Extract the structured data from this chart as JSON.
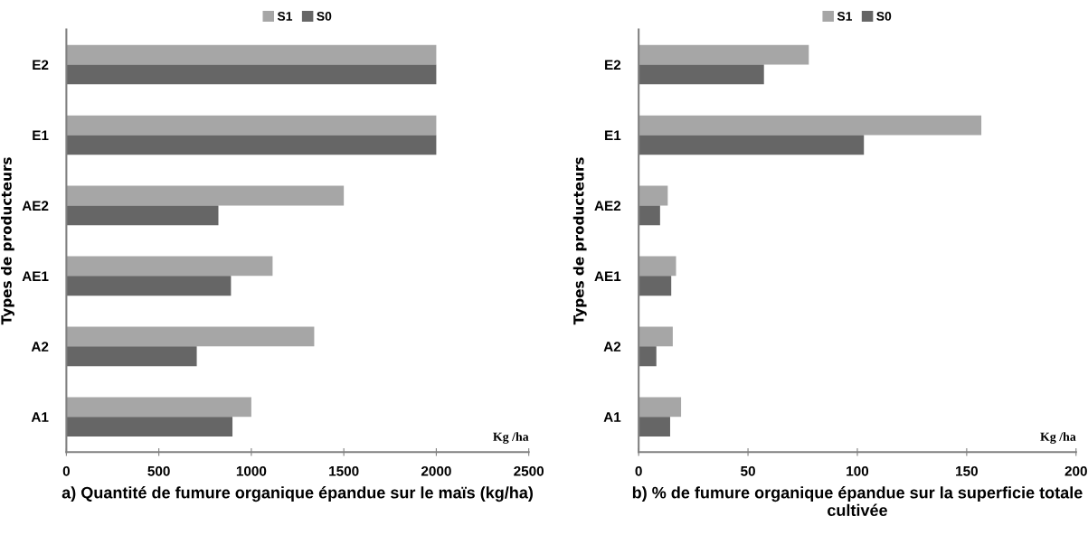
{
  "chart_data": [
    {
      "type": "bar",
      "orientation": "horizontal",
      "xlabel": "a) Quantité de fumure organique épandue sur le maïs (kg/ha)",
      "ylabel": "Types de producteurs",
      "annotations": [
        "Kg /ha"
      ],
      "categories": [
        "E2",
        "E1",
        "AE2",
        "AE1",
        "A2",
        "A1"
      ],
      "series": [
        {
          "name": "S1",
          "color": "#a6a6a6",
          "values": [
            2000,
            2000,
            1500,
            1115,
            1340,
            1000
          ]
        },
        {
          "name": "S0",
          "color": "#666666",
          "values": [
            2000,
            2000,
            822,
            890,
            705,
            898
          ]
        }
      ],
      "xlim": [
        0,
        2500
      ],
      "xticks": [
        0,
        500,
        1000,
        1500,
        2000,
        2500
      ],
      "legend": "top",
      "grid": false
    },
    {
      "type": "bar",
      "orientation": "horizontal",
      "xlabel": "b) % de fumure organique épandue sur la superficie totale cultivée",
      "ylabel": "Types de producteurs",
      "annotations": [
        "Kg /ha"
      ],
      "categories": [
        "E2",
        "E1",
        "AE2",
        "AE1",
        "A2",
        "A1"
      ],
      "series": [
        {
          "name": "S1",
          "color": "#a6a6a6",
          "values": [
            77.8,
            156.7,
            13.3,
            17.1,
            15.6,
            19.4
          ]
        },
        {
          "name": "S0",
          "color": "#666666",
          "values": [
            57.3,
            103,
            9.8,
            14.9,
            8.1,
            14.4
          ]
        }
      ],
      "xlim": [
        0,
        200
      ],
      "xticks": [
        0,
        50,
        100,
        150,
        200
      ],
      "legend": "top",
      "grid": false
    }
  ]
}
